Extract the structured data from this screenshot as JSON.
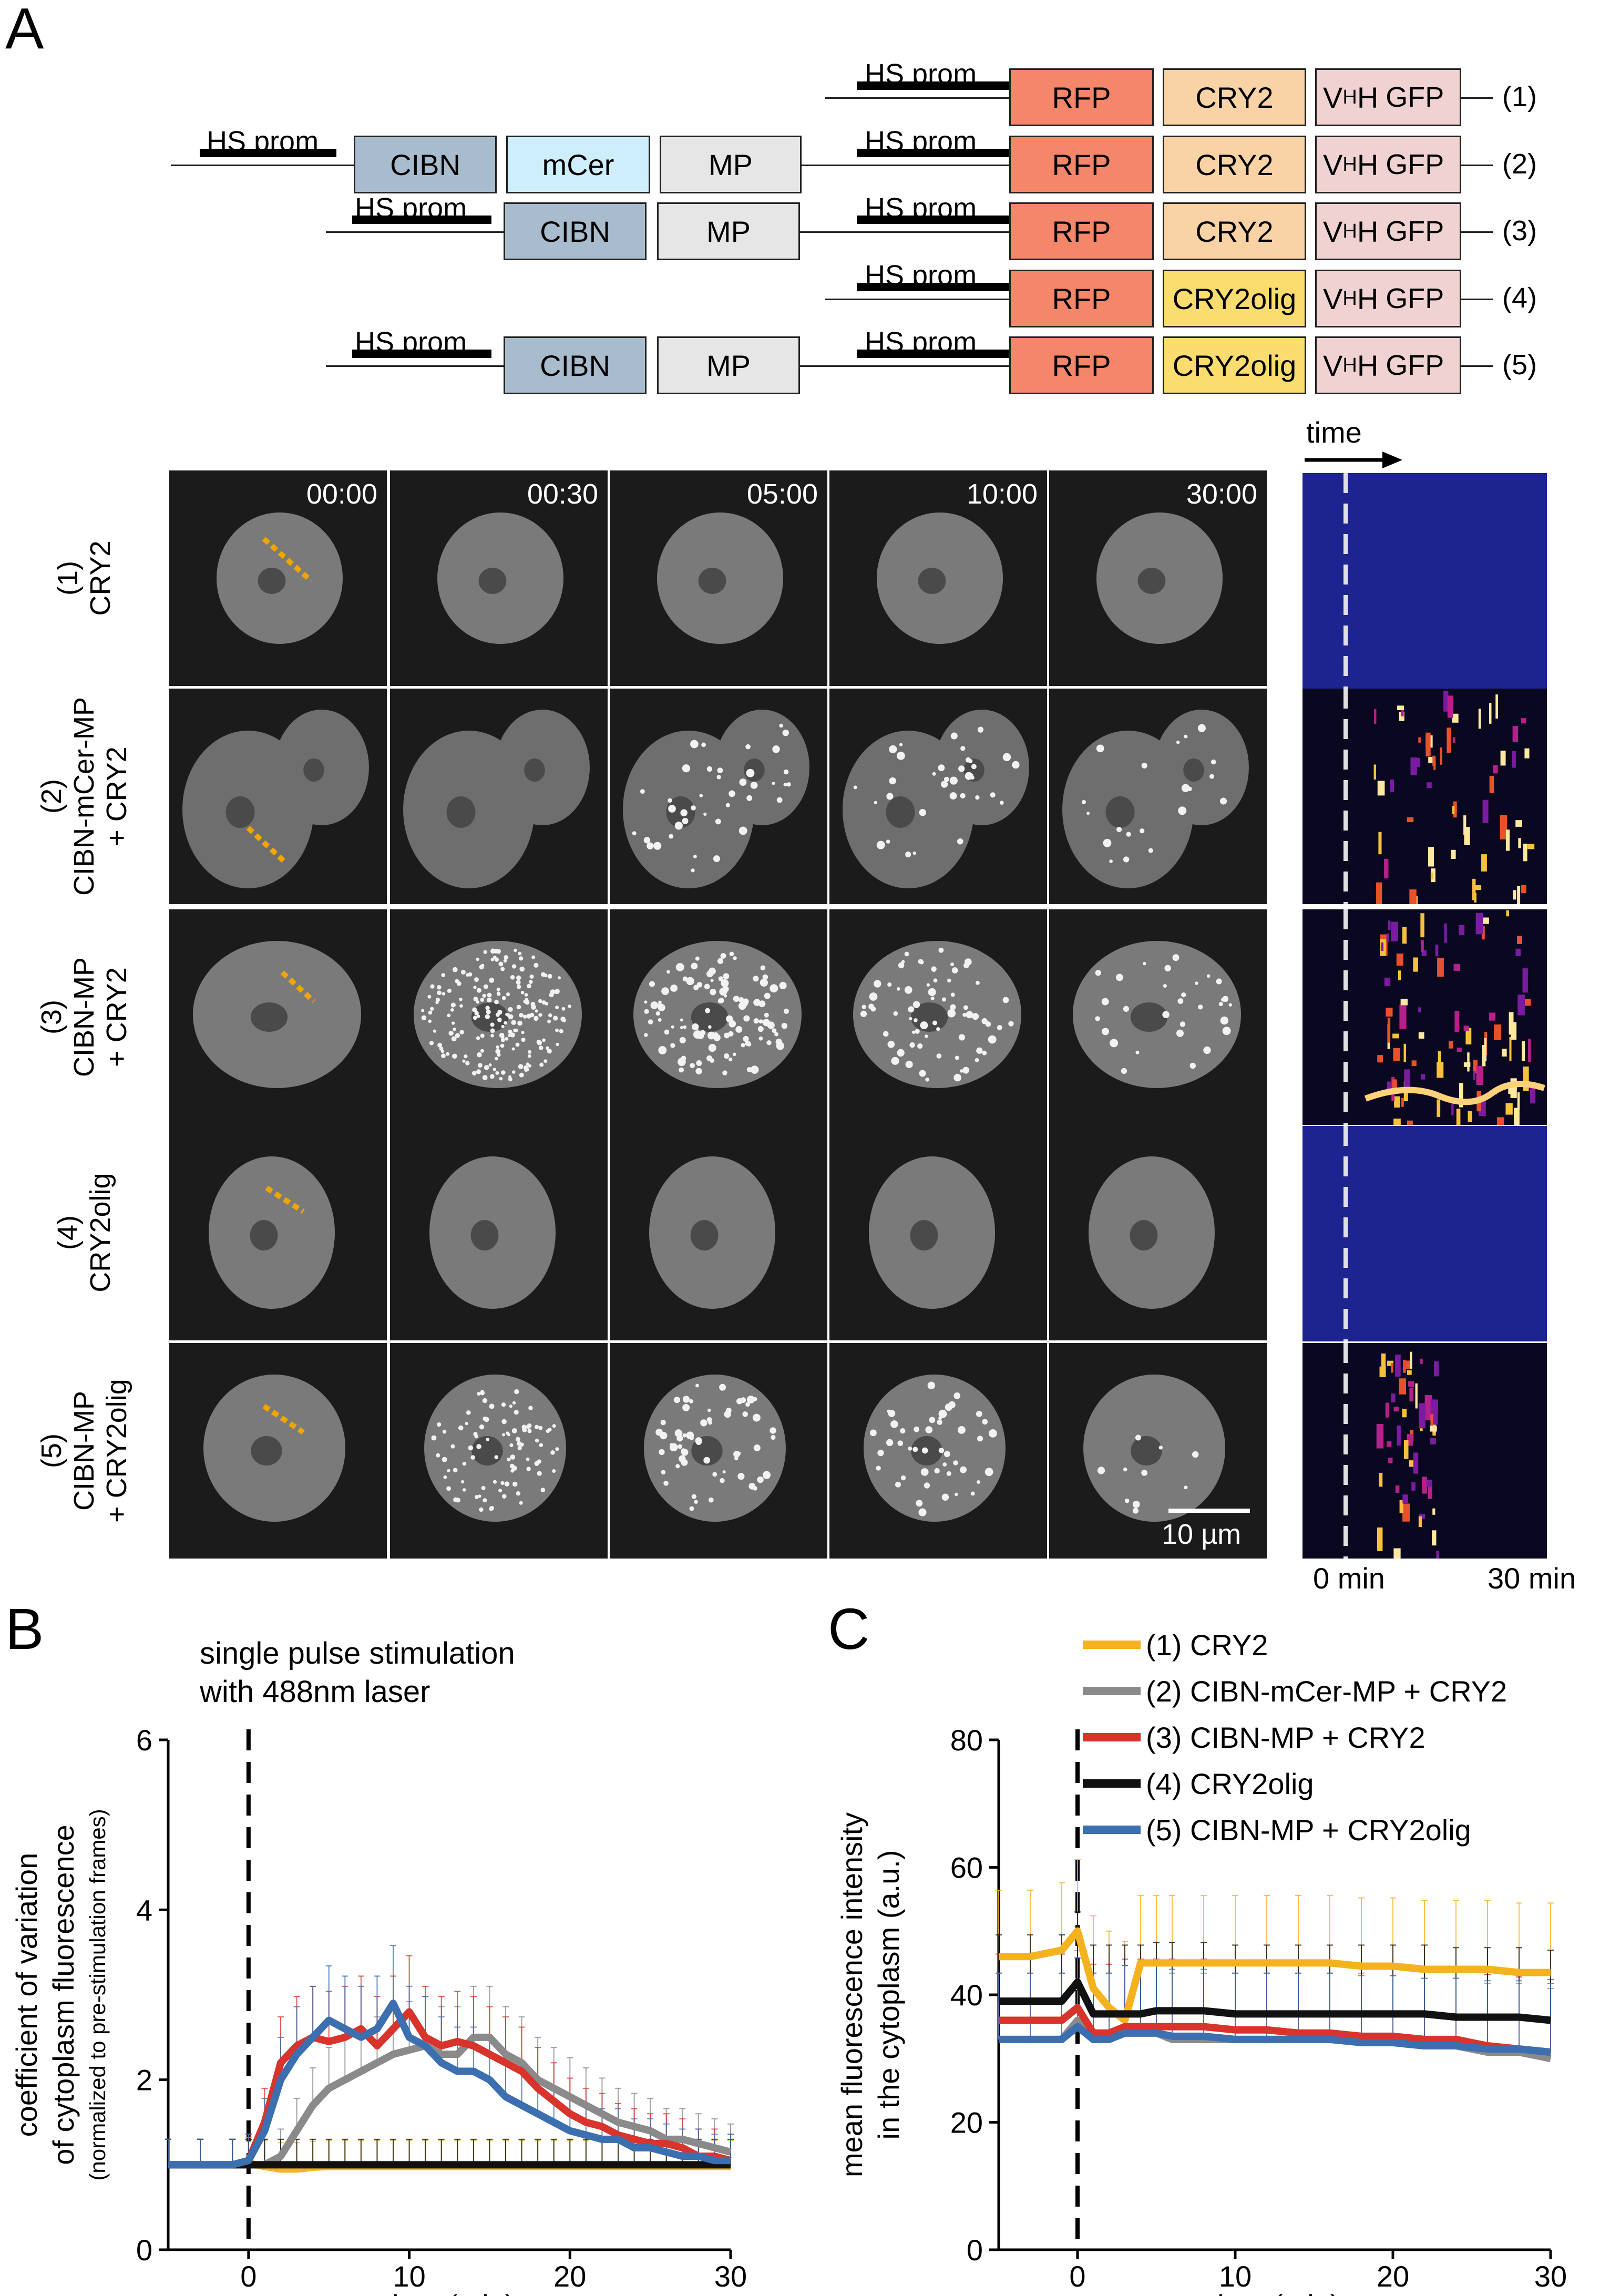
{
  "panels": {
    "a": "A",
    "b": "B",
    "c": "C"
  },
  "constructs": {
    "prom_label": "HS prom",
    "boxes": {
      "rfp": "RFP",
      "cry2": "CRY2",
      "cry2olig": "CRY2olig",
      "cibn": "CIBN",
      "mcer": "mCer",
      "mp": "MP",
      "vhh_v": "V",
      "vhh_sub": "H",
      "vhh_h": "H",
      "gfp": "GFP"
    },
    "indices": [
      "(1)",
      "(2)",
      "(3)",
      "(4)",
      "(5)"
    ],
    "colors": {
      "rfp": "#f4866a",
      "cry2": "#f9d3a6",
      "cry2olig": "#fbdc6e",
      "vhh": "#f0d2d2",
      "cibn": "#a9bccd",
      "mcer": "#cdeefa",
      "mp": "#e6e6e6"
    }
  },
  "microscopy": {
    "timepoints": [
      "00:00",
      "00:30",
      "05:00",
      "10:00",
      "30:00"
    ],
    "rows": [
      {
        "num": "(1)",
        "line1": "CRY2",
        "line2": ""
      },
      {
        "num": "(2)",
        "line1": "CIBN-mCer-MP",
        "line2": "+ CRY2"
      },
      {
        "num": "(3)",
        "line1": "CIBN-MP",
        "line2": "+ CRY2"
      },
      {
        "num": "(4)",
        "line1": "CRY2olig",
        "line2": ""
      },
      {
        "num": "(5)",
        "line1": "CIBN-MP",
        "line2": "+ CRY2olig"
      }
    ],
    "scale_bar": "10 µm",
    "kymo_time": "time",
    "kymo_start": "0 min",
    "kymo_end": "30 min"
  },
  "panel_b": {
    "title_line1": "single pulse stimulation",
    "title_line2": "with 488nm laser",
    "ylabel_line1": "coefficient of variation",
    "ylabel_line2": "of cytoplasm fluorescence",
    "ylabel_line3": "(normalized to pre-stimulation frames)",
    "xlabel": "time (min)"
  },
  "panel_c": {
    "ylabel_line1": "mean fluorescence intensity",
    "ylabel_line2": "in the cytoplasm (a.u.)",
    "xlabel": "time (min)",
    "legend": [
      {
        "label": "(1) CRY2",
        "color": "#f5b21f"
      },
      {
        "label": "(2) CIBN-mCer-MP + CRY2",
        "color": "#8a8a8a"
      },
      {
        "label": "(3) CIBN-MP + CRY2",
        "color": "#d8342c"
      },
      {
        "label": "(4) CRY2olig",
        "color": "#111111"
      },
      {
        "label": "(5) CIBN-MP + CRY2olig",
        "color": "#3b6fb0"
      }
    ]
  },
  "chart_data": [
    {
      "type": "line",
      "title": "single pulse stimulation with 488nm laser",
      "xlabel": "time (min)",
      "ylabel": "coefficient of variation of cytoplasm fluorescence (normalized to pre-stimulation frames)",
      "xlim": [
        -5,
        30
      ],
      "ylim": [
        0,
        6
      ],
      "xticks": [
        0,
        10,
        20,
        30
      ],
      "yticks": [
        0,
        2,
        4,
        6
      ],
      "stimulus_x": 0,
      "x": [
        -5,
        -3,
        -1,
        0,
        1,
        2,
        3,
        4,
        5,
        6,
        7,
        8,
        9,
        10,
        11,
        12,
        13,
        14,
        15,
        16,
        17,
        18,
        19,
        20,
        21,
        22,
        23,
        24,
        25,
        26,
        27,
        28,
        29,
        30
      ],
      "series": [
        {
          "name": "(1) CRY2",
          "color": "#f5b21f",
          "values": [
            1.0,
            1.0,
            1.0,
            1.02,
            0.98,
            0.95,
            0.95,
            0.97,
            0.98,
            0.98,
            0.98,
            0.98,
            0.98,
            0.98,
            0.98,
            0.98,
            0.98,
            0.98,
            0.98,
            0.98,
            0.98,
            0.98,
            0.98,
            0.98,
            0.98,
            0.98,
            0.98,
            0.98,
            0.98,
            0.98,
            0.98,
            0.98,
            0.98,
            0.98
          ]
        },
        {
          "name": "(2) CIBN-mCer-MP + CRY2",
          "color": "#8a8a8a",
          "values": [
            1.0,
            1.0,
            1.0,
            1.0,
            1.0,
            1.1,
            1.4,
            1.7,
            1.9,
            2.0,
            2.1,
            2.2,
            2.3,
            2.35,
            2.4,
            2.3,
            2.3,
            2.5,
            2.5,
            2.3,
            2.2,
            2.0,
            1.9,
            1.8,
            1.7,
            1.6,
            1.5,
            1.45,
            1.4,
            1.3,
            1.3,
            1.25,
            1.2,
            1.15
          ]
        },
        {
          "name": "(3) CIBN-MP + CRY2",
          "color": "#d8342c",
          "values": [
            1.0,
            1.0,
            1.0,
            1.05,
            1.5,
            2.2,
            2.4,
            2.5,
            2.45,
            2.5,
            2.6,
            2.4,
            2.6,
            2.8,
            2.5,
            2.4,
            2.45,
            2.4,
            2.3,
            2.2,
            2.1,
            1.9,
            1.75,
            1.6,
            1.5,
            1.45,
            1.35,
            1.3,
            1.25,
            1.25,
            1.2,
            1.1,
            1.1,
            1.05
          ]
        },
        {
          "name": "(4) CRY2olig",
          "color": "#111111",
          "values": [
            1.0,
            1.0,
            1.0,
            1.0,
            1.0,
            1.0,
            1.0,
            1.0,
            1.0,
            1.0,
            1.0,
            1.0,
            1.0,
            1.0,
            1.0,
            1.0,
            1.0,
            1.0,
            1.0,
            1.0,
            1.0,
            1.0,
            1.0,
            1.0,
            1.0,
            1.0,
            1.0,
            1.0,
            1.0,
            1.0,
            1.0,
            1.0,
            1.0,
            1.0
          ]
        },
        {
          "name": "(5) CIBN-MP + CRY2olig",
          "color": "#3b6fb0",
          "values": [
            1.0,
            1.0,
            1.0,
            1.05,
            1.4,
            2.0,
            2.3,
            2.5,
            2.7,
            2.6,
            2.5,
            2.6,
            2.9,
            2.5,
            2.4,
            2.2,
            2.1,
            2.1,
            2.0,
            1.8,
            1.7,
            1.6,
            1.5,
            1.4,
            1.35,
            1.3,
            1.3,
            1.2,
            1.2,
            1.15,
            1.1,
            1.1,
            1.05,
            1.05
          ]
        }
      ]
    },
    {
      "type": "line",
      "title": "",
      "xlabel": "time (min)",
      "ylabel": "mean fluorescence intensity in the cytoplasm (a.u.)",
      "xlim": [
        -5,
        30
      ],
      "ylim": [
        0,
        80
      ],
      "xticks": [
        0,
        10,
        20,
        30
      ],
      "yticks": [
        0,
        20,
        40,
        60,
        80
      ],
      "stimulus_x": 0,
      "x": [
        -5,
        -3,
        -1,
        0,
        1,
        2,
        3,
        4,
        5,
        6,
        8,
        10,
        12,
        14,
        16,
        18,
        20,
        22,
        24,
        26,
        28,
        30
      ],
      "series": [
        {
          "name": "(1) CRY2",
          "color": "#f5b21f",
          "values": [
            46,
            46,
            47,
            50,
            41,
            38,
            36,
            45,
            45,
            45,
            45,
            45,
            45,
            45,
            45,
            44.5,
            44.5,
            44,
            44,
            44,
            43.5,
            43.5
          ]
        },
        {
          "name": "(2) CIBN-mCer-MP + CRY2",
          "color": "#8a8a8a",
          "values": [
            33,
            33,
            33,
            36,
            33,
            33,
            34,
            34,
            34,
            33,
            33,
            33,
            33,
            33,
            33,
            33,
            32.5,
            32,
            32,
            31,
            31,
            30
          ]
        },
        {
          "name": "(3) CIBN-MP + CRY2",
          "color": "#d8342c",
          "values": [
            36,
            36,
            36,
            38,
            34,
            34,
            35,
            35,
            35,
            35,
            35,
            34.5,
            34.5,
            34,
            34,
            33.5,
            33.5,
            33,
            33,
            32,
            31.5,
            31
          ]
        },
        {
          "name": "(4) CRY2olig",
          "color": "#111111",
          "values": [
            39,
            39,
            39,
            42,
            37,
            37,
            37,
            37,
            37.5,
            37.5,
            37.5,
            37,
            37,
            37,
            37,
            37,
            37,
            37,
            36.5,
            36.5,
            36.5,
            36
          ]
        },
        {
          "name": "(5) CIBN-MP + CRY2olig",
          "color": "#3b6fb0",
          "values": [
            33,
            33,
            33,
            35,
            33,
            33,
            34,
            34,
            34,
            33.5,
            33.5,
            33,
            33,
            33,
            33,
            32.5,
            32.5,
            32,
            32,
            31.5,
            31.5,
            31
          ]
        }
      ]
    }
  ]
}
